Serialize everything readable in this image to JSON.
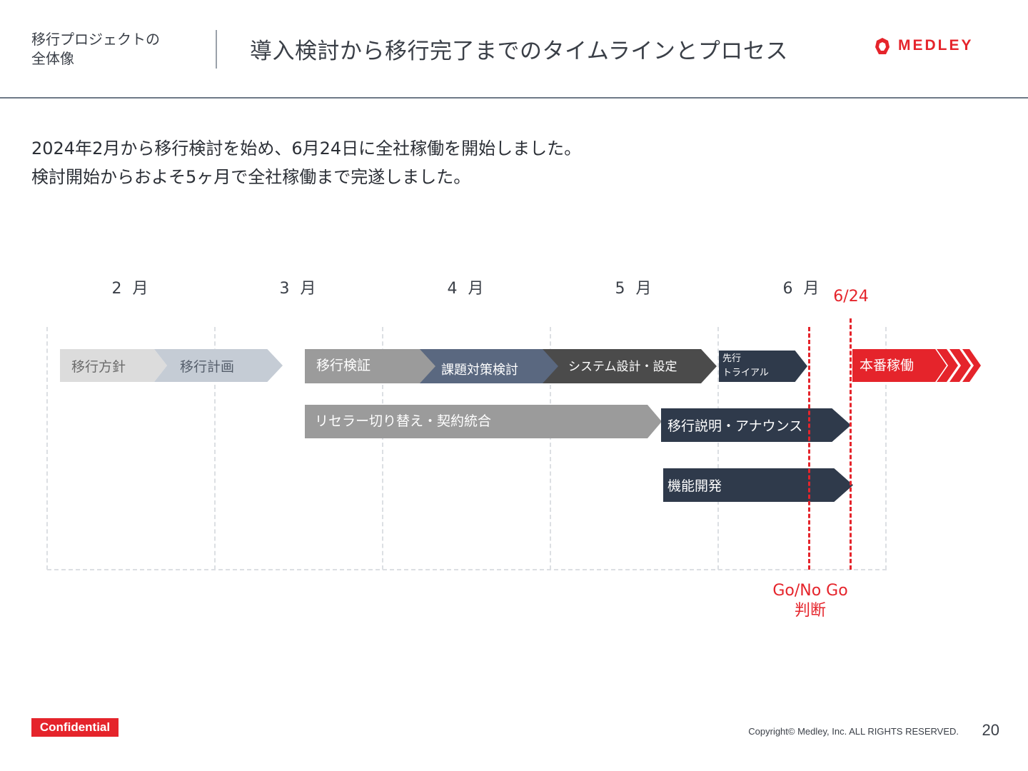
{
  "header": {
    "section": "移行プロジェクトの\n全体像",
    "title": "導入検討から移行完了までのタイムラインとプロセス",
    "logo_text": "MEDLEY"
  },
  "lead": {
    "line1": "2024年2月から移行検討を始め、6月24日に全社稼働を開始しました。",
    "line2": "検討開始からおよそ5ヶ月で全社稼働まで完遂しました。"
  },
  "timeline": {
    "months": [
      "2 月",
      "3 月",
      "4 月",
      "5 月",
      "6 月"
    ],
    "phases": {
      "policy": "移行方針",
      "plan": "移行計画",
      "verify": "移行検証",
      "issues": "課題対策検討",
      "design": "システム設計・設定",
      "trial_1": "先行",
      "trial_2": "トライアル",
      "golive": "本番稼働",
      "reseller": "リセラー切り替え・契約統合",
      "announce": "移行説明・アナウンス",
      "dev": "機能開発"
    },
    "markers": {
      "date": "6/24",
      "gonogo_1": "Go/No Go",
      "gonogo_2": "判断"
    }
  },
  "footer": {
    "confidential": "Confidential",
    "copyright": "Copyright© Medley, Inc. ALL RIGHTS RESERVED.",
    "page": "20"
  },
  "colors": {
    "accent": "#e5242b",
    "navy": "#2f3a4b",
    "slate": "#5a6880",
    "gray": "#9b9b9b",
    "dark_gray": "#4b4b4b",
    "light_gray": "#dcdcdc",
    "light_slate": "#c5ccd5"
  }
}
